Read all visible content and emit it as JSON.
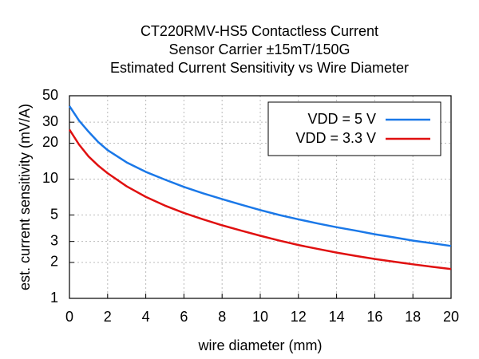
{
  "chart_data": {
    "type": "line",
    "title": [
      "CT220RMV-HS5 Contactless Current",
      "Sensor Carrier ±15mT/150G",
      "Estimated Current Sensitivity vs Wire Diameter"
    ],
    "x_label": "wire diameter (mm)",
    "y_label": "est. current sensitivity (mV/A)",
    "x": [
      0,
      0.5,
      1,
      1.5,
      2,
      3,
      4,
      5,
      6,
      7,
      8,
      9,
      10,
      11,
      12,
      13,
      14,
      15,
      16,
      17,
      18,
      19,
      20
    ],
    "series": [
      {
        "name": "VDD = 5 V",
        "color": "#1a78e8",
        "values": [
          41,
          31,
          25,
          20.5,
          17.5,
          13.8,
          11.5,
          9.9,
          8.6,
          7.6,
          6.8,
          6.1,
          5.5,
          5.0,
          4.6,
          4.25,
          3.95,
          3.7,
          3.45,
          3.25,
          3.05,
          2.9,
          2.75
        ]
      },
      {
        "name": "VDD = 3.3 V",
        "color": "#e01010",
        "values": [
          26,
          19.5,
          15.5,
          13,
          11.2,
          8.7,
          7.1,
          6.0,
          5.2,
          4.6,
          4.1,
          3.7,
          3.35,
          3.05,
          2.8,
          2.6,
          2.42,
          2.27,
          2.14,
          2.03,
          1.93,
          1.84,
          1.76
        ]
      }
    ],
    "xlim": [
      0,
      20
    ],
    "xticks": [
      0,
      2,
      4,
      6,
      8,
      10,
      12,
      14,
      16,
      18,
      20
    ],
    "ylim": [
      1,
      50
    ],
    "yticks": [
      1,
      2,
      3,
      5,
      10,
      20,
      30,
      50
    ],
    "y_scale": "log",
    "grid": true,
    "legend": "upper right"
  }
}
